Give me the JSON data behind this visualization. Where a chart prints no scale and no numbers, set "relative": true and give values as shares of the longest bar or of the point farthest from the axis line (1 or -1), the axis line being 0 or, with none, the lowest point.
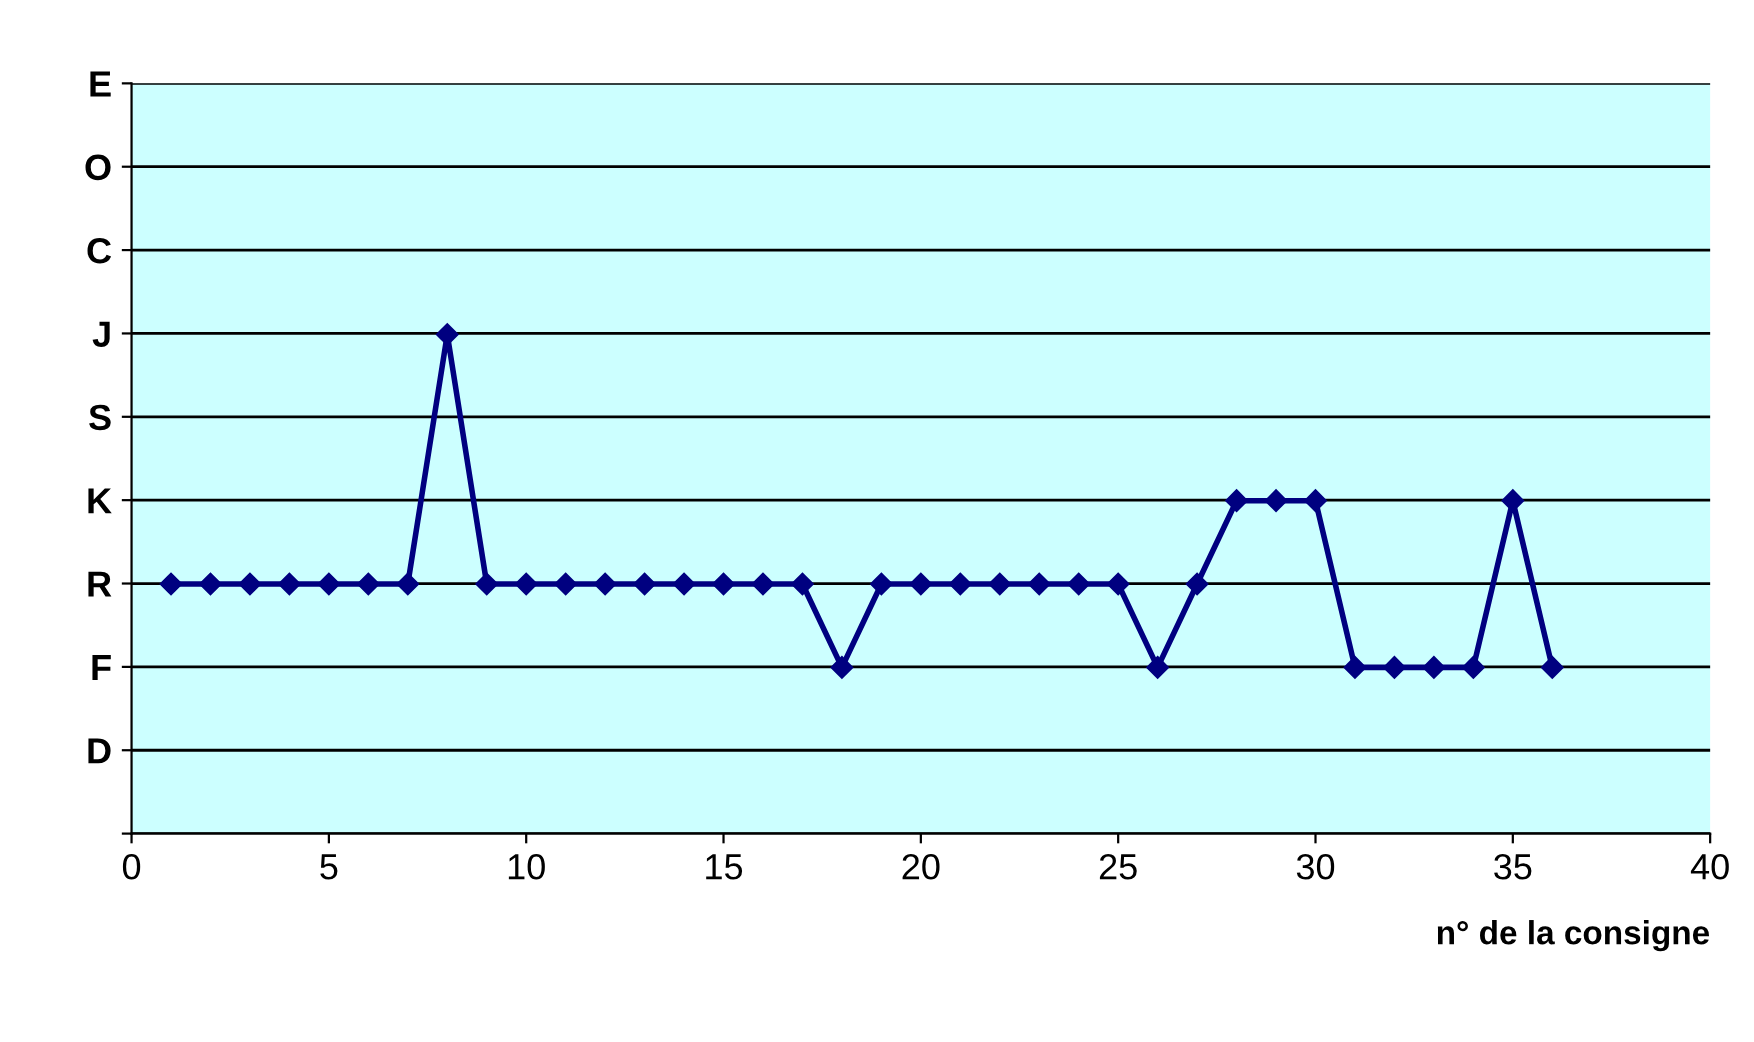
{
  "chart_data": {
    "type": "line",
    "xlabel": "n° de la consigne",
    "relative": true,
    "x": [
      1,
      2,
      3,
      4,
      5,
      6,
      7,
      8,
      9,
      10,
      11,
      12,
      13,
      14,
      15,
      16,
      17,
      18,
      19,
      20,
      21,
      22,
      23,
      24,
      25,
      26,
      27,
      28,
      29,
      30,
      31,
      32,
      33,
      34,
      35,
      36
    ],
    "y_categories": [
      "E",
      "O",
      "C",
      "J",
      "S",
      "K",
      "R",
      "F",
      "D",
      null
    ],
    "series": [
      {
        "color": "#000080",
        "values": [
          0.5,
          0.5,
          0.5,
          0.5,
          0.5,
          0.5,
          0.5,
          1,
          0.5,
          0.5,
          0.5,
          0.5,
          0.5,
          0.5,
          0.5,
          0.5,
          0.5,
          0.333,
          0.5,
          0.5,
          0.5,
          0.5,
          0.5,
          0.5,
          0.5,
          0.333,
          0.5,
          0.667,
          0.667,
          0.667,
          0.333,
          0.333,
          0.333,
          0.333,
          0.667,
          0.333
        ]
      }
    ],
    "xlim": [
      0,
      40
    ],
    "xticks": [
      0,
      5,
      10,
      15,
      20,
      25,
      30,
      35,
      40
    ],
    "grid": "y",
    "marker": "diamond",
    "line_style": "solid",
    "legend": false
  }
}
